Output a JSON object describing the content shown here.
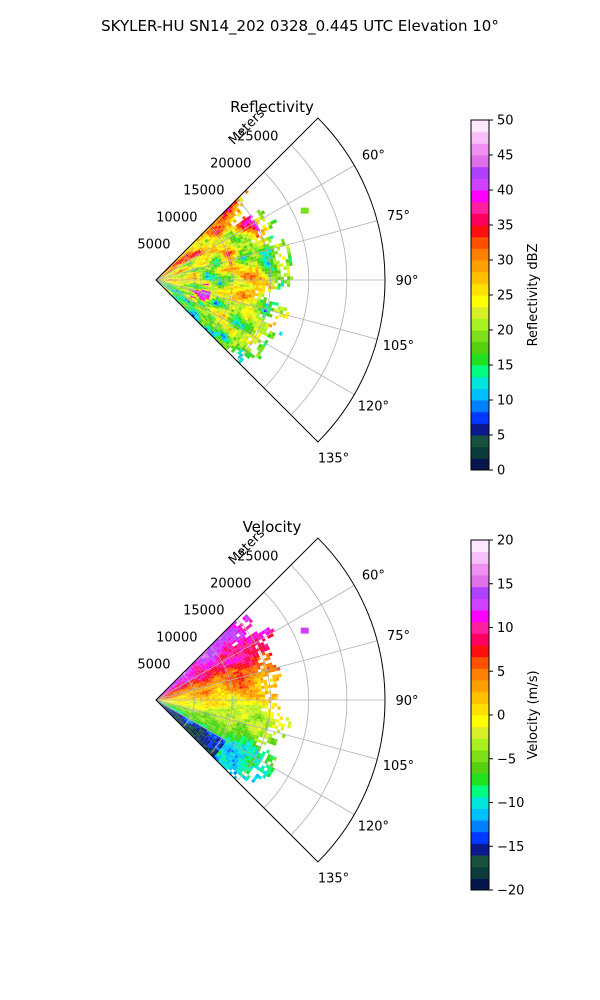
{
  "suptitle": "SKYLER-HU  SN14_202  0328_0.445 UTC Elevation 10°",
  "chart_data": [
    {
      "type": "heatmap",
      "subtype": "polar-sector-ppi",
      "title": "Reflectivity",
      "radial_label": "Meters",
      "radial_ticks": [
        "5000",
        "10000",
        "15000",
        "20000",
        "25000"
      ],
      "radial_tick_values": [
        5000,
        10000,
        15000,
        20000,
        25000
      ],
      "r_max": 30000,
      "azimuth_range_deg": [
        45,
        135
      ],
      "azimuth_ticks": [
        "60°",
        "75°",
        "90°",
        "105°",
        "120°",
        "135°"
      ],
      "azimuth_tick_values": [
        60,
        75,
        90,
        105,
        120,
        135
      ],
      "data_max_range_m": 18000,
      "colorbar": {
        "label": "Reflectivity dBZ",
        "vmin": 0,
        "vmax": 50,
        "ticks": [
          "0",
          "5",
          "10",
          "15",
          "20",
          "25",
          "30",
          "35",
          "40",
          "45",
          "50"
        ],
        "tick_values": [
          0,
          5,
          10,
          15,
          20,
          25,
          30,
          35,
          40,
          45,
          50
        ],
        "colors": [
          "#04164d",
          "#0a3a3a",
          "#16523f",
          "#0a1a8c",
          "#0038ff",
          "#0080ff",
          "#00c0ff",
          "#00e6d8",
          "#00ff80",
          "#20e020",
          "#55d010",
          "#7ee018",
          "#a8f020",
          "#d8f028",
          "#ffff00",
          "#ffe000",
          "#ffc000",
          "#ffa000",
          "#ff8000",
          "#ff5000",
          "#ff1010",
          "#ff0060",
          "#ff20a0",
          "#ff00ff",
          "#d040ff",
          "#b040ff",
          "#e070e8",
          "#f090f0",
          "#f8c0f8",
          "#fde8fd"
        ]
      }
    },
    {
      "type": "heatmap",
      "subtype": "polar-sector-ppi",
      "title": "Velocity",
      "radial_label": "Meters",
      "radial_ticks": [
        "5000",
        "10000",
        "15000",
        "20000",
        "25000"
      ],
      "radial_tick_values": [
        5000,
        10000,
        15000,
        20000,
        25000
      ],
      "r_max": 30000,
      "azimuth_range_deg": [
        45,
        135
      ],
      "azimuth_ticks": [
        "60°",
        "75°",
        "90°",
        "105°",
        "120°",
        "135°"
      ],
      "azimuth_tick_values": [
        60,
        75,
        90,
        105,
        120,
        135
      ],
      "data_max_range_m": 18000,
      "colorbar": {
        "label": "Velocity (m/s)",
        "vmin": -20,
        "vmax": 20,
        "ticks": [
          "−20",
          "−15",
          "−10",
          "−5",
          "0",
          "5",
          "10",
          "15",
          "20"
        ],
        "tick_values": [
          -20,
          -15,
          -10,
          -5,
          0,
          5,
          10,
          15,
          20
        ],
        "colors": [
          "#04164d",
          "#0a3a3a",
          "#16523f",
          "#0a1a8c",
          "#0038ff",
          "#0080ff",
          "#00c0ff",
          "#00e6d8",
          "#00ff80",
          "#20e020",
          "#55d010",
          "#7ee018",
          "#a8f020",
          "#d8f028",
          "#ffff00",
          "#ffe000",
          "#ffc000",
          "#ffa000",
          "#ff8000",
          "#ff5000",
          "#ff1010",
          "#ff0060",
          "#ff20a0",
          "#ff00ff",
          "#d040ff",
          "#b040ff",
          "#e070e8",
          "#f090f0",
          "#f8c0f8",
          "#fde8fd"
        ]
      }
    }
  ]
}
